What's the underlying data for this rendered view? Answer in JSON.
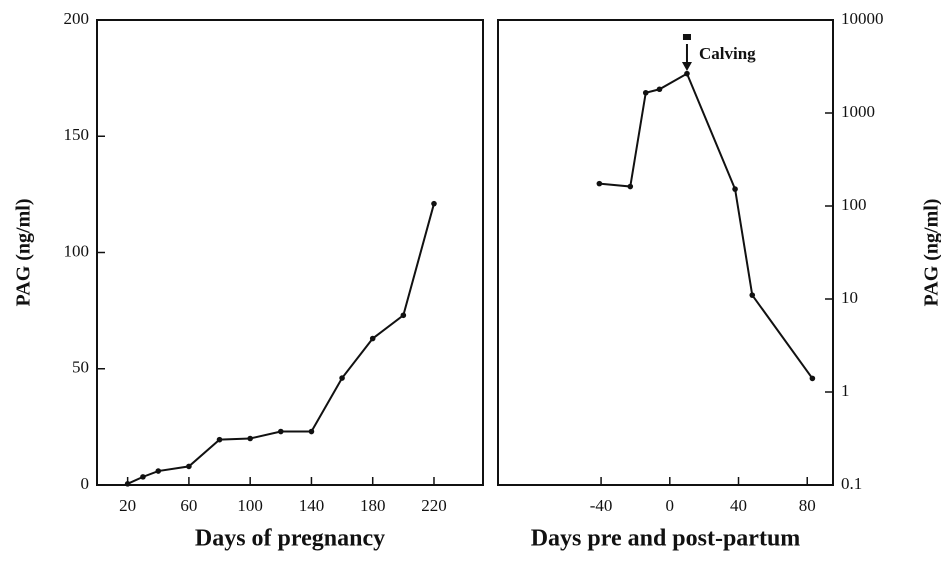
{
  "chart_data": [
    {
      "type": "line",
      "x_label": "Days of pregnancy",
      "y_label": "PAG (ng/ml)",
      "y_axis_side": "left",
      "log_y": false,
      "color": "#111111",
      "x": [
        20,
        30,
        40,
        60,
        80,
        100,
        120,
        140,
        160,
        180,
        200,
        220
      ],
      "values": [
        0.5,
        3.5,
        6,
        8,
        19.5,
        20,
        23,
        23,
        46,
        63,
        73,
        121
      ],
      "xlim": [
        0,
        252
      ],
      "ylim": [
        0,
        200
      ],
      "xticks": [
        20,
        60,
        100,
        140,
        180,
        220
      ],
      "yticks": [
        0,
        50,
        100,
        150,
        200
      ]
    },
    {
      "type": "line",
      "x_label": "Days pre and post-partum",
      "y_label": "PAG (ng/ml)",
      "y_axis_side": "right",
      "log_y": true,
      "color": "#111111",
      "x": [
        -41,
        -23,
        -14,
        -6,
        10,
        38,
        48,
        83
      ],
      "values": [
        174,
        162,
        1650,
        1800,
        2650,
        152,
        11,
        1.4
      ],
      "xlim": [
        -100,
        95
      ],
      "ylim": [
        0.1,
        10000
      ],
      "xticks": [
        -40,
        0,
        40,
        80
      ],
      "yticks": [
        0.1,
        1,
        10,
        100,
        1000,
        10000
      ],
      "annotation": {
        "text": "Calving",
        "x": 10
      }
    }
  ]
}
